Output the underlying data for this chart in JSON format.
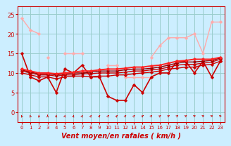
{
  "bg_color": "#cceeff",
  "grid_color": "#99cccc",
  "xlabel": "Vent moyen/en rafales ( km/h )",
  "xlabel_color": "#cc0000",
  "xlabel_fontsize": 7,
  "xticks": [
    0,
    1,
    2,
    3,
    4,
    5,
    6,
    7,
    8,
    9,
    10,
    11,
    12,
    13,
    14,
    15,
    16,
    17,
    18,
    19,
    20,
    21,
    22,
    23
  ],
  "yticks": [
    0,
    5,
    10,
    15,
    20,
    25
  ],
  "ylim": [
    -2.5,
    27
  ],
  "xlim": [
    -0.5,
    23.5
  ],
  "series": [
    {
      "color": "#ffaaaa",
      "linewidth": 1.0,
      "markersize": 2.5,
      "y": [
        24,
        21,
        20,
        null,
        null,
        null,
        null,
        null,
        null,
        null,
        null,
        null,
        null,
        null,
        null,
        14,
        17,
        19,
        19,
        19,
        20,
        15,
        23,
        23
      ]
    },
    {
      "color": "#ffaaaa",
      "linewidth": 1.0,
      "markersize": 2.5,
      "y": [
        null,
        null,
        null,
        14,
        null,
        15,
        15,
        15,
        null,
        null,
        null,
        null,
        null,
        null,
        null,
        null,
        null,
        null,
        null,
        null,
        null,
        null,
        null,
        null
      ]
    },
    {
      "color": "#ffaaaa",
      "linewidth": 1.0,
      "markersize": 2.5,
      "y": [
        null,
        null,
        null,
        null,
        null,
        null,
        null,
        null,
        null,
        null,
        12,
        12,
        null,
        null,
        null,
        null,
        null,
        null,
        null,
        null,
        null,
        null,
        null,
        null
      ]
    },
    {
      "color": "#ffaaaa",
      "linewidth": 1.0,
      "markersize": 2.5,
      "y": [
        null,
        null,
        null,
        null,
        null,
        null,
        null,
        null,
        null,
        null,
        null,
        null,
        9,
        9,
        9,
        9,
        null,
        null,
        null,
        null,
        null,
        null,
        null,
        null
      ]
    },
    {
      "color": "#cc0000",
      "linewidth": 1.2,
      "markersize": 2.5,
      "y": [
        15,
        9,
        8,
        9,
        5,
        11,
        10,
        12,
        9,
        9,
        4,
        3,
        3,
        7,
        5,
        9,
        10,
        10,
        13,
        13,
        10,
        13,
        9,
        13
      ]
    },
    {
      "color": "#cc0000",
      "linewidth": 1.0,
      "markersize": 2.5,
      "y": [
        10,
        9.5,
        9,
        9,
        8.5,
        9.0,
        9.2,
        9.2,
        9.0,
        9.2,
        9.2,
        9.5,
        9.5,
        9.8,
        10.0,
        10.2,
        10.5,
        11.0,
        11.2,
        11.5,
        11.5,
        12.0,
        12.2,
        13.0
      ]
    },
    {
      "color": "#cc0000",
      "linewidth": 1.0,
      "markersize": 2.5,
      "y": [
        10.5,
        10.0,
        9.5,
        9.5,
        9.2,
        9.5,
        9.5,
        9.8,
        9.8,
        10.0,
        10.0,
        10.0,
        10.2,
        10.5,
        10.5,
        10.8,
        11.0,
        11.5,
        12.0,
        12.2,
        12.2,
        12.5,
        12.8,
        13.5
      ]
    },
    {
      "color": "#990000",
      "linewidth": 1.0,
      "markersize": 2.5,
      "y": [
        10.8,
        10.2,
        9.8,
        9.8,
        9.5,
        9.8,
        10.0,
        10.0,
        10.2,
        10.5,
        10.5,
        10.5,
        10.8,
        11.0,
        11.0,
        11.2,
        11.5,
        12.0,
        12.5,
        12.8,
        12.8,
        13.0,
        13.2,
        13.8
      ]
    },
    {
      "color": "#ff2222",
      "linewidth": 1.4,
      "markersize": 2.5,
      "y": [
        11.0,
        10.5,
        10.0,
        10.0,
        9.8,
        10.0,
        10.2,
        10.5,
        10.5,
        10.8,
        11.0,
        11.0,
        11.2,
        11.5,
        11.5,
        11.8,
        12.0,
        12.5,
        13.0,
        13.2,
        13.5,
        13.5,
        13.5,
        14.0
      ]
    }
  ],
  "arrow_color": "#cc0000",
  "arrow_angles": [
    200,
    190,
    185,
    180,
    175,
    170,
    165,
    160,
    155,
    150,
    145,
    145,
    140,
    140,
    135,
    135,
    130,
    125,
    125,
    120,
    115,
    110,
    105,
    100
  ]
}
